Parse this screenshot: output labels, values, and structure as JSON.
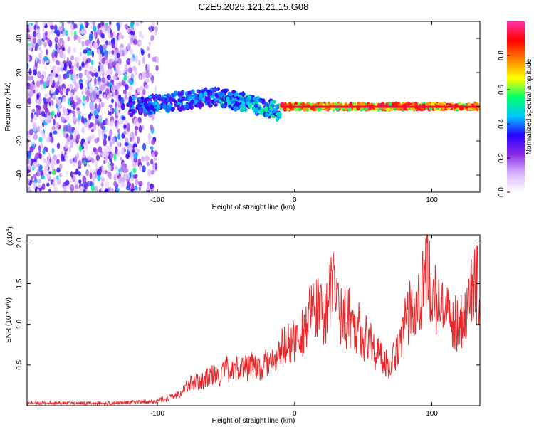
{
  "title": "C2E5.2025.121.21.15.G08",
  "colors": {
    "snr_line": "#e8282a",
    "axis": "#000000",
    "background": "#ffffff"
  },
  "chart_data": [
    {
      "type": "heatmap",
      "xlabel": "Height of straight line (km)",
      "ylabel": "Frequency (Hz)",
      "xlim": [
        -195,
        135
      ],
      "ylim": [
        -50,
        50
      ],
      "x_ticks": [
        {
          "value": -100,
          "label": "-100"
        },
        {
          "value": 0,
          "label": "0"
        },
        {
          "value": 100,
          "label": "100"
        }
      ],
      "y_ticks": [
        {
          "value": -40,
          "label": "-40"
        },
        {
          "value": -20,
          "label": "-20"
        },
        {
          "value": 0,
          "label": "0"
        },
        {
          "value": 20,
          "label": "20"
        },
        {
          "value": 40,
          "label": "40"
        }
      ],
      "colorbar": {
        "label": "Normalized spectral amplitude",
        "range": [
          0.0,
          1.0
        ],
        "ticks": [
          {
            "value": 0.0,
            "label": "0.0"
          },
          {
            "value": 0.2,
            "label": "0.2"
          },
          {
            "value": 0.4,
            "label": "0.4"
          },
          {
            "value": 0.6,
            "label": "0.6"
          },
          {
            "value": 0.8,
            "label": "0.8"
          }
        ],
        "colormap": [
          "#ffffff",
          "#d9b3ff",
          "#8a2be2",
          "#2a00ff",
          "#00c8ff",
          "#00ff66",
          "#ffff00",
          "#ff8000",
          "#ff0000",
          "#ff33aa"
        ]
      },
      "regions": [
        {
          "name": "noise",
          "x_range": [
            -195,
            -100
          ],
          "freq_range": [
            -50,
            50
          ],
          "amplitude": 0.15
        },
        {
          "name": "signal-onset",
          "x_range": [
            -120,
            -55
          ],
          "freq_center": [
            0,
            6
          ],
          "amplitude": 0.45
        },
        {
          "name": "signal-drift",
          "x_range": [
            -55,
            -10
          ],
          "freq_center": [
            6,
            -3
          ],
          "amplitude": 0.55
        },
        {
          "name": "signal-steady",
          "x_range": [
            -10,
            135
          ],
          "freq_center": [
            0,
            0
          ],
          "amplitude": 0.95
        }
      ]
    },
    {
      "type": "line",
      "xlabel": "Height of straight line (km)",
      "ylabel": "SNR (10 * v/v)",
      "y_multiplier": "(x10",
      "y_multiplier_exp": "4",
      "y_multiplier_close": ")",
      "xlim": [
        -195,
        135
      ],
      "ylim": [
        0,
        2.1
      ],
      "x_ticks": [
        {
          "value": -100,
          "label": "-100"
        },
        {
          "value": 0,
          "label": "0"
        },
        {
          "value": 100,
          "label": "100"
        }
      ],
      "y_ticks": [
        {
          "value": 0.5,
          "label": "0.5"
        },
        {
          "value": 1.0,
          "label": "1.0"
        },
        {
          "value": 1.5,
          "label": "1.5"
        },
        {
          "value": 2.0,
          "label": "2.0"
        }
      ],
      "series": [
        {
          "x": [
            -195,
            -180,
            -160,
            -140,
            -120,
            -110,
            -100,
            -90,
            -85,
            -80,
            -75,
            -70,
            -65,
            -60,
            -55,
            -50,
            -45,
            -40,
            -35,
            -30,
            -25,
            -20,
            -15,
            -10,
            -5,
            0,
            5,
            10,
            15,
            20,
            25,
            28,
            30,
            35,
            40,
            45,
            50,
            55,
            60,
            65,
            70,
            75,
            80,
            85,
            90,
            95,
            97,
            100,
            105,
            110,
            115,
            120,
            125,
            130,
            135
          ],
          "y": [
            0.03,
            0.03,
            0.03,
            0.03,
            0.04,
            0.05,
            0.06,
            0.1,
            0.15,
            0.22,
            0.28,
            0.3,
            0.32,
            0.38,
            0.35,
            0.45,
            0.42,
            0.5,
            0.45,
            0.55,
            0.4,
            0.55,
            0.5,
            0.7,
            0.75,
            0.8,
            0.9,
            1.05,
            1.2,
            1.1,
            1.25,
            1.5,
            1.4,
            1.05,
            1.1,
            1.0,
            0.85,
            0.8,
            0.65,
            0.55,
            0.5,
            0.75,
            0.95,
            1.25,
            1.35,
            1.5,
            1.75,
            1.4,
            1.2,
            1.1,
            1.0,
            1.05,
            1.15,
            1.45,
            1.5
          ]
        }
      ]
    }
  ]
}
